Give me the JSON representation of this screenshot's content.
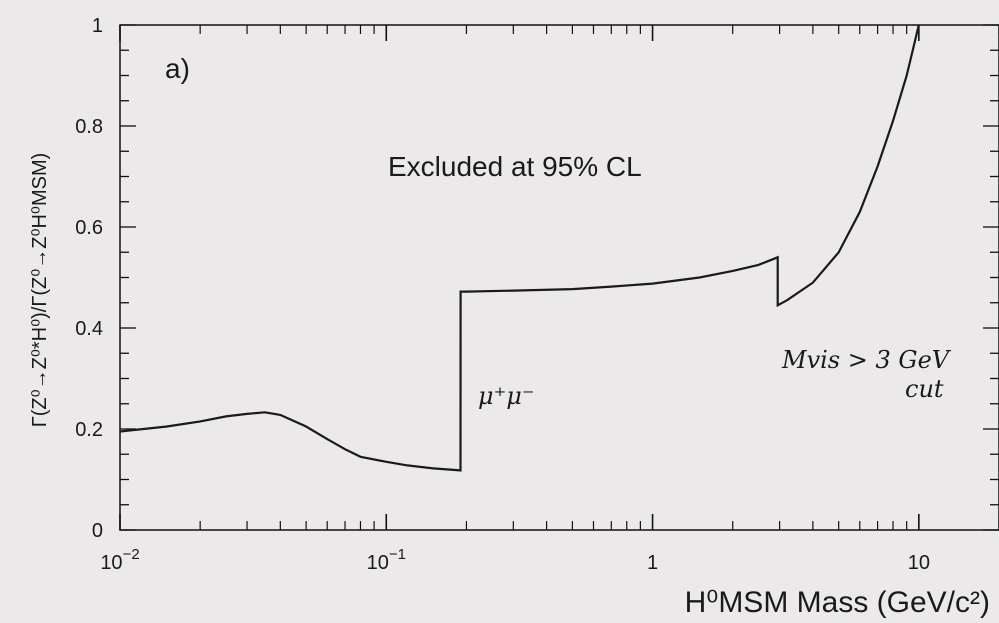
{
  "chart_data": {
    "type": "line",
    "title": "",
    "panel_label": "a)",
    "xlabel": "H⁰MSM Mass (GeV/c²)",
    "ylabel": "Γ(Z⁰→Z⁰*H⁰)/Γ(Z⁰→Z⁰H⁰MSM)",
    "x_scale": "log",
    "xlim": [
      0.01,
      20
    ],
    "ylim": [
      0,
      1
    ],
    "x_ticks": [
      {
        "value": 0.01,
        "base": "10",
        "exp": "−2"
      },
      {
        "value": 0.1,
        "base": "10",
        "exp": "−1"
      },
      {
        "value": 1,
        "base": "1",
        "exp": ""
      },
      {
        "value": 10,
        "base": "10",
        "exp": ""
      }
    ],
    "y_ticks": [
      "0",
      "0.2",
      "0.4",
      "0.6",
      "0.8",
      "1"
    ],
    "grid": false,
    "annotations": {
      "excluded": "Excluded at 95% CL",
      "mumu": "μ⁺μ⁻",
      "mvis_line1": "Mvis > 3 GeV",
      "mvis_line2": "cut"
    },
    "series": [
      {
        "x": [
          0.01,
          0.015,
          0.02,
          0.025,
          0.03,
          0.035,
          0.04,
          0.05,
          0.06,
          0.07,
          0.08,
          0.1,
          0.12,
          0.15,
          0.19,
          0.1901,
          0.2,
          0.3,
          0.5,
          0.7,
          1.0,
          1.5,
          2.0,
          2.5,
          2.95,
          2.951,
          3.2,
          4.0,
          5.0,
          6.0,
          7.0,
          8.0,
          9.0,
          10.0
        ],
        "y": [
          0.195,
          0.205,
          0.215,
          0.225,
          0.23,
          0.233,
          0.228,
          0.205,
          0.18,
          0.16,
          0.145,
          0.135,
          0.128,
          0.122,
          0.118,
          0.472,
          0.472,
          0.474,
          0.477,
          0.482,
          0.488,
          0.5,
          0.513,
          0.525,
          0.54,
          0.445,
          0.455,
          0.49,
          0.55,
          0.63,
          0.72,
          0.81,
          0.9,
          1.0
        ]
      }
    ]
  }
}
